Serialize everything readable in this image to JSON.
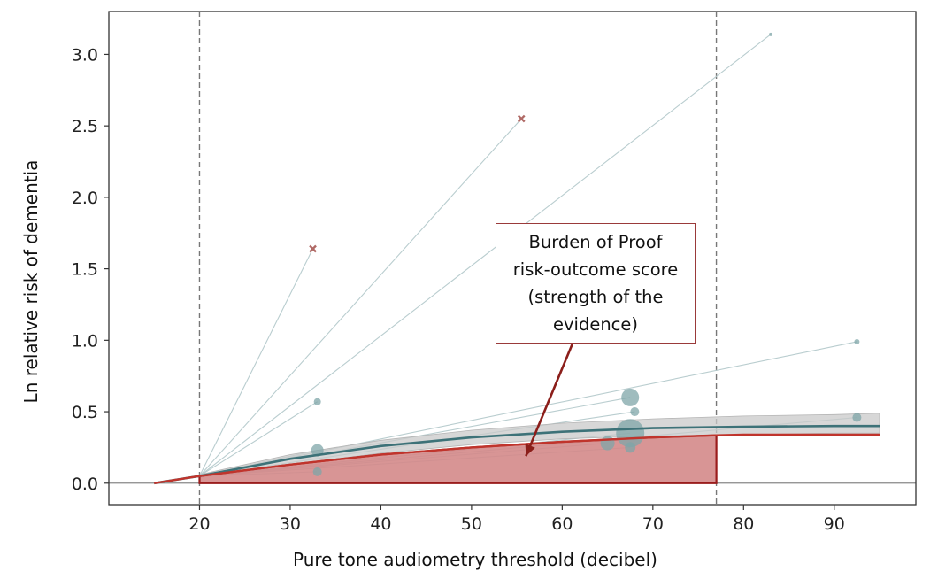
{
  "chart_data": {
    "type": "line",
    "title": "",
    "xlabel": "Pure tone audiometry threshold (decibel)",
    "ylabel": "Ln relative risk of dementia",
    "xlim": [
      10,
      99
    ],
    "ylim": [
      -0.15,
      3.3
    ],
    "x_ticks": [
      20,
      30,
      40,
      50,
      60,
      70,
      80,
      90
    ],
    "y_ticks": [
      0.0,
      0.5,
      1.0,
      1.5,
      2.0,
      2.5,
      3.0
    ],
    "y_tick_labels": [
      "0.0",
      "0.5",
      "1.0",
      "1.5",
      "2.0",
      "2.5",
      "3.0"
    ],
    "reference_lines": {
      "vertical_x": [
        20,
        77
      ],
      "horizontal_y": [
        0
      ]
    },
    "grid": false,
    "colors": {
      "study_points": "#7fa6a8",
      "study_lines": "#b9cdcf",
      "outlier": "#b06a66",
      "mean_curve": "#3d7278",
      "uncertainty_band": "#c9c9c9",
      "bprf_curve": "#c0342c",
      "bprf_fill": "#d48a8a",
      "arrow": "#8b1e1a"
    },
    "series": [
      {
        "kind": "mean",
        "x": [
          15,
          20,
          30,
          40,
          50,
          60,
          70,
          80,
          90,
          95
        ],
        "y": [
          0.0,
          0.05,
          0.17,
          0.26,
          0.32,
          0.36,
          0.385,
          0.395,
          0.4,
          0.4
        ]
      },
      {
        "kind": "band",
        "x": [
          20,
          30,
          40,
          50,
          60,
          70,
          80,
          90,
          95
        ],
        "lower": [
          0.04,
          0.13,
          0.21,
          0.27,
          0.31,
          0.33,
          0.34,
          0.35,
          0.35
        ],
        "upper": [
          0.06,
          0.2,
          0.3,
          0.37,
          0.42,
          0.45,
          0.47,
          0.48,
          0.49
        ]
      },
      {
        "kind": "bprf",
        "x": [
          15,
          20,
          30,
          40,
          50,
          60,
          70,
          77,
          80,
          90,
          95
        ],
        "y": [
          0.0,
          0.05,
          0.13,
          0.2,
          0.25,
          0.29,
          0.32,
          0.335,
          0.34,
          0.34,
          0.34
        ]
      }
    ],
    "studies": [
      {
        "x": 32.5,
        "y": 1.64,
        "size": 3,
        "outlier": true
      },
      {
        "x": 55.5,
        "y": 2.55,
        "size": 3,
        "outlier": true
      },
      {
        "x": 83.0,
        "y": 3.14,
        "size": 2,
        "outlier": false
      },
      {
        "x": 92.5,
        "y": 0.99,
        "size": 3,
        "outlier": false
      },
      {
        "x": 92.5,
        "y": 0.46,
        "size": 5,
        "outlier": false
      },
      {
        "x": 33.0,
        "y": 0.57,
        "size": 4,
        "outlier": false
      },
      {
        "x": 33.0,
        "y": 0.23,
        "size": 7,
        "outlier": false
      },
      {
        "x": 33.0,
        "y": 0.08,
        "size": 5,
        "outlier": false
      },
      {
        "x": 67.5,
        "y": 0.6,
        "size": 10,
        "outlier": false
      },
      {
        "x": 68.0,
        "y": 0.5,
        "size": 5,
        "outlier": false
      },
      {
        "x": 67.5,
        "y": 0.35,
        "size": 16,
        "outlier": false
      },
      {
        "x": 65.0,
        "y": 0.28,
        "size": 8,
        "outlier": false
      },
      {
        "x": 67.5,
        "y": 0.25,
        "size": 6,
        "outlier": false
      }
    ],
    "annotation": {
      "lines": [
        "Burden of Proof",
        "risk-outcome score",
        "(strength of the",
        "evidence)"
      ],
      "arrow_target": {
        "x": 56,
        "y": 0.19
      }
    }
  }
}
